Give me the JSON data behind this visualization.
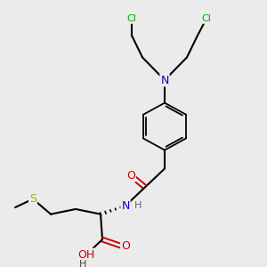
{
  "bg_color": "#ebebeb",
  "atom_colors": {
    "C": "#000000",
    "N": "#0000cc",
    "O": "#cc0000",
    "S": "#aaaa00",
    "Cl": "#00aa00",
    "H": "#666666"
  },
  "bond_color": "#000000",
  "bond_lw": 1.5
}
